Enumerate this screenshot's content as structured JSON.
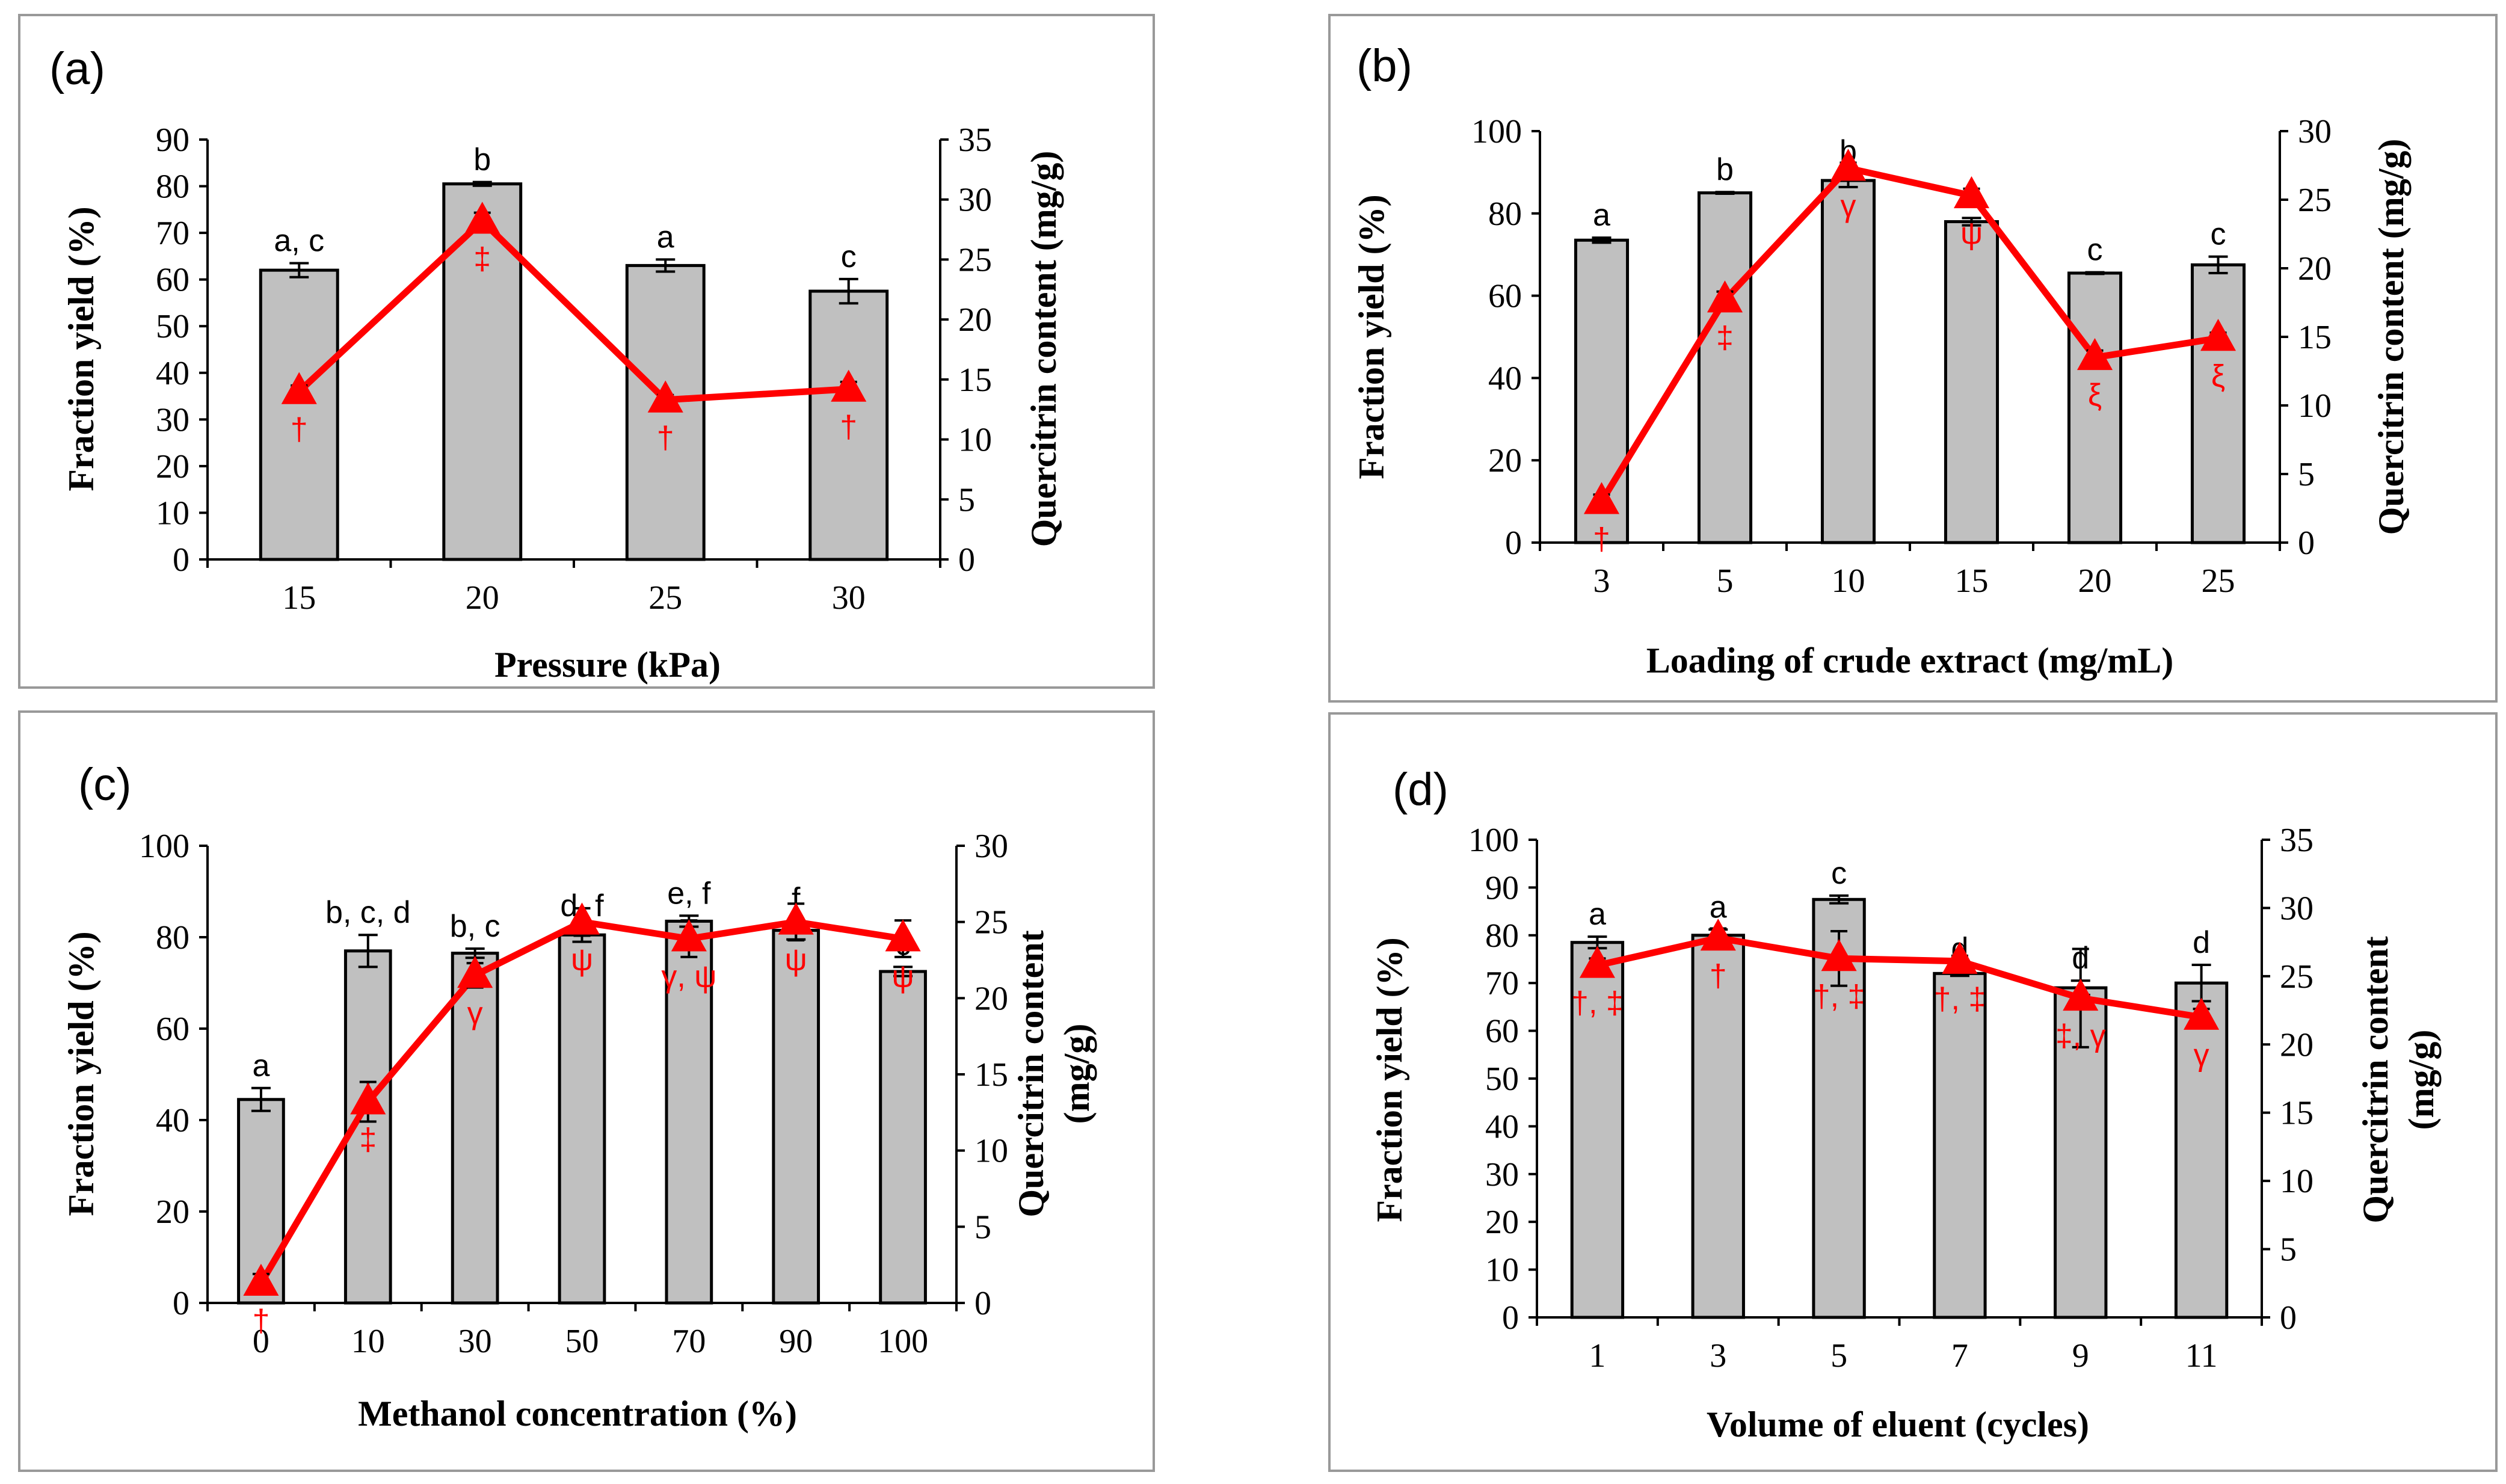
{
  "chart_data": [
    {
      "type": "bar+line",
      "panel_label": "(a)",
      "xlabel": "Pressure (kPa)",
      "ylabel_left": "Fraction yield (%)",
      "ylabel_right": [
        "Quercitrin content (mg/g)"
      ],
      "categories": [
        "15",
        "20",
        "25",
        "30"
      ],
      "ylim_left": [
        0,
        90
      ],
      "ystep_left": 10,
      "ylim_right": [
        0,
        35
      ],
      "ystep_right": 5,
      "series": [
        {
          "name": "Fraction yield (%)",
          "kind": "bar",
          "axis": "left",
          "values": [
            62,
            80.5,
            63,
            57.5
          ],
          "errors": [
            1.5,
            0.4,
            1.3,
            2.6
          ],
          "labels": [
            "a, c",
            "b",
            "a",
            "c"
          ]
        },
        {
          "name": "Quercitrin content (mg/g)",
          "kind": "line",
          "axis": "right",
          "color": "#ff0000",
          "values": [
            14.0,
            28.2,
            13.3,
            14.2
          ],
          "errors": [
            0.5,
            0.7,
            0.4,
            0.6
          ],
          "labels": [
            "†",
            "‡",
            "†",
            "†"
          ]
        }
      ]
    },
    {
      "type": "bar+line",
      "panel_label": "(b)",
      "xlabel": "Loading of crude extract (mg/mL)",
      "ylabel_left": "Fraction yield (%)",
      "ylabel_right": [
        "Quercitrin content (mg/g)"
      ],
      "categories": [
        "3",
        "5",
        "10",
        "15",
        "20",
        "25"
      ],
      "ylim_left": [
        0,
        100
      ],
      "ystep_left": 20,
      "ylim_right": [
        0,
        30
      ],
      "ystep_right": 5,
      "series": [
        {
          "name": "Fraction yield (%)",
          "kind": "bar",
          "axis": "left",
          "values": [
            73.5,
            85,
            88,
            78,
            65.5,
            67.5
          ],
          "errors": [
            0.6,
            0.2,
            1.6,
            0.9,
            0.2,
            2.0
          ],
          "labels": [
            "a",
            "b",
            "b",
            "a",
            "c",
            "c"
          ]
        },
        {
          "name": "Quercitrin content (mg/g)",
          "kind": "line",
          "axis": "right",
          "color": "#ff0000",
          "values": [
            3.0,
            17.7,
            27.3,
            25.3,
            13.5,
            14.9
          ],
          "errors": [
            0.5,
            0.6,
            0.4,
            0.5,
            0.5,
            0.4
          ],
          "labels": [
            "†",
            "‡",
            "γ",
            "ψ",
            "ξ",
            "ξ"
          ]
        }
      ]
    },
    {
      "type": "bar+line",
      "panel_label": "(c)",
      "xlabel": "Methanol concentration (%)",
      "ylabel_left": "Fraction yield (%)",
      "ylabel_right": [
        "Quercitrin content",
        "(mg/g)"
      ],
      "categories": [
        "0",
        "10",
        "30",
        "50",
        "70",
        "90",
        "100"
      ],
      "ylim_left": [
        0,
        100
      ],
      "ystep_left": 20,
      "ylim_right": [
        0,
        30
      ],
      "ystep_right": 5,
      "series": [
        {
          "name": "Fraction yield (%)",
          "kind": "bar",
          "axis": "left",
          "values": [
            44.5,
            77,
            76.5,
            80.5,
            83.5,
            81.5,
            72.5
          ],
          "errors": [
            2.5,
            3.5,
            1.0,
            1.5,
            1.2,
            2.0,
            1.0
          ],
          "labels": [
            "a",
            "b, c, d",
            "b, c",
            "d, f",
            "e, f",
            "f",
            "c"
          ]
        },
        {
          "name": "Quercitrin content (mg/g)",
          "kind": "line",
          "axis": "right",
          "color": "#ff0000",
          "values": [
            1.3,
            13.2,
            21.5,
            25.0,
            23.9,
            25.0,
            23.9
          ],
          "errors": [
            0.6,
            1.3,
            0.8,
            0.9,
            1.2,
            1.2,
            1.2
          ],
          "labels": [
            "†",
            "‡",
            "γ",
            "ψ",
            "γ, ψ",
            "ψ",
            "ψ"
          ]
        }
      ]
    },
    {
      "type": "bar+line",
      "panel_label": "(d)",
      "xlabel": "Volume of eluent (cycles)",
      "ylabel_left": "Fraction yield (%)",
      "ylabel_right": [
        "Quercitrin content",
        "(mg/g)"
      ],
      "categories": [
        "1",
        "3",
        "5",
        "7",
        "9",
        "11"
      ],
      "ylim_left": [
        0,
        100
      ],
      "ystep_left": 10,
      "ylim_right": [
        0,
        35
      ],
      "ystep_right": 5,
      "series": [
        {
          "name": "Fraction yield (%)",
          "kind": "bar",
          "axis": "left",
          "values": [
            78.5,
            80,
            87.5,
            72,
            69,
            70
          ],
          "errors": [
            1.2,
            1.2,
            0.8,
            0.5,
            1.5,
            3.8
          ],
          "labels": [
            "a",
            "a",
            "c",
            "d",
            "d",
            "d"
          ]
        },
        {
          "name": "Quercitrin content (mg/g)",
          "kind": "line",
          "axis": "right",
          "color": "#ff0000",
          "values": [
            25.8,
            27.8,
            26.3,
            26.1,
            23.4,
            22.0
          ],
          "errors": [
            0.5,
            0.7,
            2.0,
            0.4,
            3.6,
            0.6
          ],
          "labels": [
            "†, ‡",
            "†",
            "†, ‡",
            "†, ‡",
            "‡, γ",
            "γ"
          ]
        }
      ]
    }
  ]
}
